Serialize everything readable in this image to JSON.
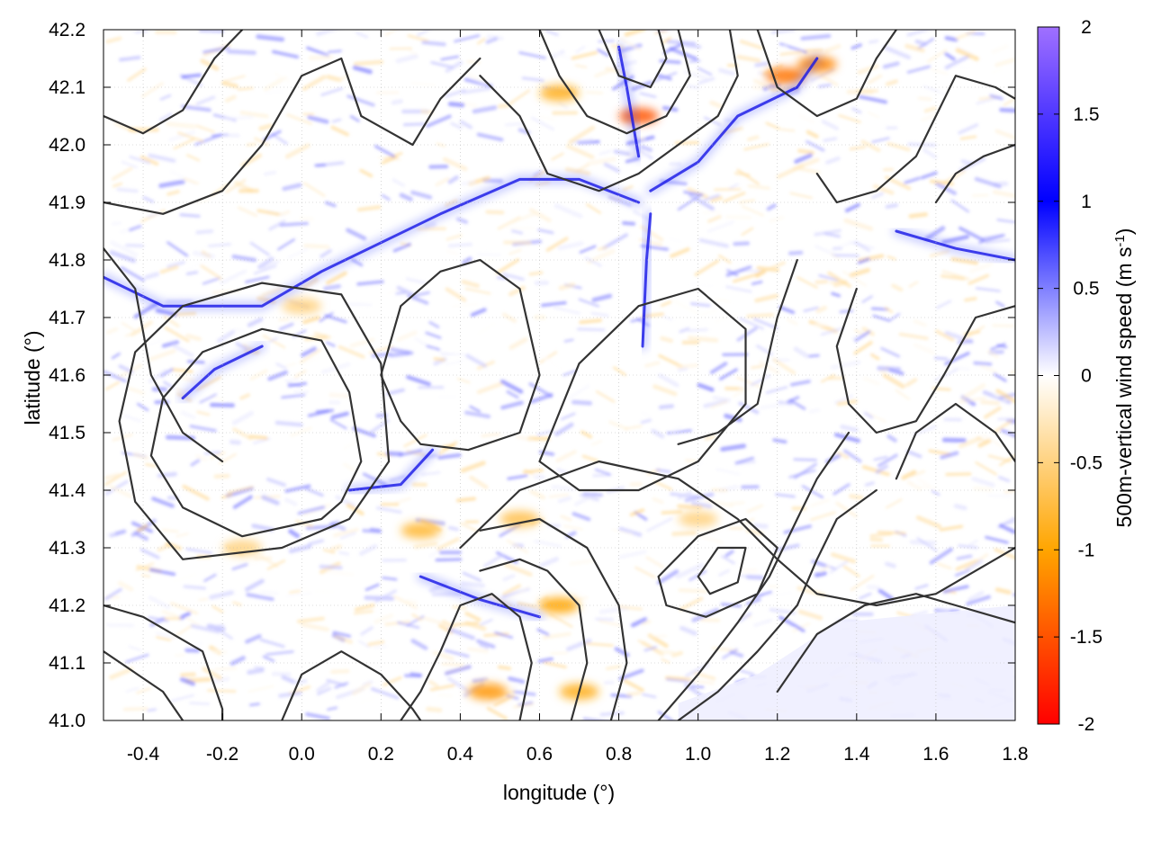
{
  "chart_data": {
    "type": "heatmap",
    "title": "",
    "xlabel": "longitude (°)",
    "ylabel": "latitude (°)",
    "colorbar_label_main": "500m-vertical wind speed (m s",
    "colorbar_label_sup": "-1",
    "colorbar_label_end": ")",
    "xlim": [
      -0.5,
      1.8
    ],
    "ylim": [
      41.0,
      42.2
    ],
    "xticks": [
      "-0.4",
      "-0.2",
      "0.0",
      "0.2",
      "0.4",
      "0.6",
      "0.8",
      "1.0",
      "1.2",
      "1.4",
      "1.6",
      "1.8"
    ],
    "yticks": [
      "41.0",
      "41.1",
      "41.2",
      "41.3",
      "41.4",
      "41.5",
      "41.6",
      "41.7",
      "41.8",
      "41.9",
      "42.0",
      "42.1",
      "42.2"
    ],
    "clim": [
      -2,
      2
    ],
    "cticks": [
      "-2",
      "-1.5",
      "-1",
      "-0.5",
      "0",
      "0.5",
      "1",
      "1.5",
      "2"
    ],
    "grid": true,
    "colormap": [
      "#ff0000",
      "#ffa500",
      "#ffffff",
      "#0000ff",
      "#a070ff"
    ],
    "contour_color": "#333333",
    "features": {
      "updraft_ridges": [
        [
          [
            -0.5,
            41.77
          ],
          [
            -0.35,
            41.72
          ],
          [
            -0.1,
            41.72
          ],
          [
            0.05,
            41.78
          ],
          [
            0.2,
            41.83
          ],
          [
            0.35,
            41.88
          ],
          [
            0.55,
            41.94
          ],
          [
            0.7,
            41.94
          ],
          [
            0.85,
            41.9
          ]
        ],
        [
          [
            0.88,
            41.88
          ],
          [
            0.87,
            41.8
          ],
          [
            0.86,
            41.65
          ]
        ],
        [
          [
            0.88,
            41.92
          ],
          [
            1.0,
            41.97
          ],
          [
            1.1,
            42.05
          ],
          [
            1.25,
            42.1
          ],
          [
            1.3,
            42.15
          ]
        ],
        [
          [
            -0.3,
            41.56
          ],
          [
            -0.22,
            41.61
          ],
          [
            -0.1,
            41.65
          ]
        ],
        [
          [
            0.12,
            41.4
          ],
          [
            0.25,
            41.41
          ],
          [
            0.33,
            41.47
          ]
        ],
        [
          [
            0.3,
            41.25
          ],
          [
            0.45,
            41.21
          ],
          [
            0.6,
            41.18
          ]
        ],
        [
          [
            0.8,
            42.17
          ],
          [
            0.82,
            42.1
          ],
          [
            0.85,
            41.98
          ]
        ],
        [
          [
            1.5,
            41.85
          ],
          [
            1.65,
            41.82
          ],
          [
            1.8,
            41.8
          ]
        ]
      ],
      "downdraft_spots": [
        [
          0.85,
          42.05,
          -1.5
        ],
        [
          1.22,
          42.12,
          -1.3
        ],
        [
          1.3,
          42.14,
          -1.2
        ],
        [
          0.65,
          41.2,
          -1.0
        ],
        [
          0.47,
          41.05,
          -1.1
        ],
        [
          0.3,
          41.33,
          -0.8
        ],
        [
          0.65,
          42.09,
          -0.9
        ],
        [
          0.55,
          41.35,
          -0.7
        ],
        [
          0.0,
          41.72,
          -0.5
        ],
        [
          -0.15,
          41.3,
          -0.5
        ],
        [
          0.7,
          41.05,
          -0.9
        ],
        [
          1.0,
          41.35,
          -0.5
        ]
      ],
      "calm_area": [
        [
          0.95,
          41.0
        ],
        [
          1.8,
          41.0
        ],
        [
          1.8,
          41.2
        ],
        [
          1.35,
          41.17
        ],
        [
          1.15,
          41.08
        ],
        [
          0.95,
          41.03
        ]
      ]
    },
    "contours": [
      [
        [
          0.1,
          41.38
        ],
        [
          0.05,
          41.35
        ],
        [
          -0.15,
          41.32
        ],
        [
          -0.3,
          41.37
        ],
        [
          -0.38,
          41.46
        ],
        [
          -0.35,
          41.56
        ],
        [
          -0.25,
          41.64
        ],
        [
          -0.1,
          41.68
        ],
        [
          0.05,
          41.66
        ],
        [
          0.12,
          41.57
        ],
        [
          0.15,
          41.45
        ],
        [
          0.1,
          41.38
        ]
      ],
      [
        [
          0.12,
          41.35
        ],
        [
          -0.05,
          41.3
        ],
        [
          -0.3,
          41.28
        ],
        [
          -0.42,
          41.38
        ],
        [
          -0.46,
          41.52
        ],
        [
          -0.42,
          41.64
        ],
        [
          -0.3,
          41.72
        ],
        [
          -0.1,
          41.76
        ],
        [
          0.1,
          41.74
        ],
        [
          0.2,
          41.62
        ],
        [
          0.22,
          41.45
        ],
        [
          0.12,
          41.35
        ]
      ],
      [
        [
          -0.5,
          41.9
        ],
        [
          -0.35,
          41.88
        ],
        [
          -0.2,
          41.92
        ],
        [
          -0.1,
          42.0
        ],
        [
          0.0,
          42.12
        ],
        [
          0.1,
          42.15
        ],
        [
          0.15,
          42.05
        ],
        [
          0.28,
          42.0
        ],
        [
          0.35,
          42.08
        ],
        [
          0.45,
          42.15
        ]
      ],
      [
        [
          -0.5,
          42.05
        ],
        [
          -0.4,
          42.02
        ],
        [
          -0.3,
          42.06
        ],
        [
          -0.22,
          42.15
        ],
        [
          -0.15,
          42.2
        ]
      ],
      [
        [
          0.25,
          41.52
        ],
        [
          0.2,
          41.6
        ],
        [
          0.25,
          41.72
        ],
        [
          0.35,
          41.78
        ],
        [
          0.45,
          41.8
        ],
        [
          0.55,
          41.75
        ],
        [
          0.6,
          41.6
        ],
        [
          0.55,
          41.5
        ],
        [
          0.42,
          41.47
        ],
        [
          0.3,
          41.48
        ],
        [
          0.25,
          41.52
        ]
      ],
      [
        [
          0.6,
          41.45
        ],
        [
          0.7,
          41.62
        ],
        [
          0.85,
          41.72
        ],
        [
          1.0,
          41.75
        ],
        [
          1.12,
          41.68
        ],
        [
          1.12,
          41.55
        ],
        [
          1.0,
          41.45
        ],
        [
          0.85,
          41.4
        ],
        [
          0.7,
          41.4
        ],
        [
          0.6,
          41.45
        ]
      ],
      [
        [
          0.4,
          41.3
        ],
        [
          0.55,
          41.4
        ],
        [
          0.75,
          41.45
        ],
        [
          0.95,
          41.42
        ],
        [
          1.1,
          41.35
        ],
        [
          1.2,
          41.28
        ],
        [
          1.3,
          41.22
        ],
        [
          1.45,
          41.2
        ],
        [
          1.6,
          41.22
        ],
        [
          1.75,
          41.28
        ],
        [
          1.8,
          41.3
        ]
      ],
      [
        [
          0.9,
          41.25
        ],
        [
          1.0,
          41.32
        ],
        [
          1.12,
          41.35
        ],
        [
          1.2,
          41.3
        ],
        [
          1.15,
          41.22
        ],
        [
          1.02,
          41.18
        ],
        [
          0.92,
          41.2
        ],
        [
          0.9,
          41.25
        ]
      ],
      [
        [
          1.0,
          41.25
        ],
        [
          1.05,
          41.3
        ],
        [
          1.12,
          41.3
        ],
        [
          1.1,
          41.24
        ],
        [
          1.03,
          41.22
        ],
        [
          1.0,
          41.25
        ]
      ],
      [
        [
          1.2,
          41.05
        ],
        [
          1.3,
          41.15
        ],
        [
          1.42,
          41.2
        ],
        [
          1.55,
          41.22
        ],
        [
          1.65,
          41.2
        ],
        [
          1.75,
          41.18
        ],
        [
          1.8,
          41.17
        ]
      ],
      [
        [
          0.95,
          41.0
        ],
        [
          1.05,
          41.05
        ],
        [
          1.15,
          41.12
        ],
        [
          1.25,
          41.2
        ],
        [
          1.3,
          41.28
        ],
        [
          1.35,
          41.35
        ],
        [
          1.45,
          41.4
        ]
      ],
      [
        [
          0.9,
          41.0
        ],
        [
          1.0,
          41.08
        ],
        [
          1.1,
          41.17
        ],
        [
          1.18,
          41.25
        ],
        [
          1.25,
          41.35
        ],
        [
          1.3,
          41.42
        ],
        [
          1.38,
          41.5
        ]
      ],
      [
        [
          0.55,
          41.0
        ],
        [
          0.58,
          41.1
        ],
        [
          0.55,
          41.18
        ],
        [
          0.48,
          41.22
        ],
        [
          0.4,
          41.2
        ],
        [
          0.35,
          41.12
        ],
        [
          0.3,
          41.05
        ],
        [
          0.25,
          41.0
        ]
      ],
      [
        [
          0.68,
          41.0
        ],
        [
          0.72,
          41.1
        ],
        [
          0.7,
          41.2
        ],
        [
          0.62,
          41.26
        ],
        [
          0.55,
          41.28
        ],
        [
          0.45,
          41.26
        ]
      ],
      [
        [
          0.78,
          41.0
        ],
        [
          0.82,
          41.1
        ],
        [
          0.8,
          41.2
        ],
        [
          0.72,
          41.3
        ],
        [
          0.6,
          41.35
        ],
        [
          0.45,
          41.33
        ]
      ],
      [
        [
          -0.5,
          41.2
        ],
        [
          -0.4,
          41.18
        ],
        [
          -0.25,
          41.12
        ],
        [
          -0.2,
          41.02
        ],
        [
          -0.2,
          41.0
        ]
      ],
      [
        [
          -0.05,
          41.0
        ],
        [
          0.0,
          41.08
        ],
        [
          0.1,
          41.12
        ],
        [
          0.2,
          41.08
        ],
        [
          0.28,
          41.02
        ],
        [
          0.3,
          41.0
        ]
      ],
      [
        [
          -0.5,
          41.12
        ],
        [
          -0.35,
          41.05
        ],
        [
          -0.3,
          41.0
        ]
      ],
      [
        [
          0.45,
          42.12
        ],
        [
          0.55,
          42.05
        ],
        [
          0.62,
          41.95
        ],
        [
          0.75,
          41.92
        ],
        [
          0.85,
          41.95
        ],
        [
          0.95,
          42.0
        ],
        [
          1.05,
          42.05
        ],
        [
          1.1,
          42.12
        ],
        [
          1.08,
          42.2
        ]
      ],
      [
        [
          0.6,
          42.2
        ],
        [
          0.65,
          42.12
        ],
        [
          0.72,
          42.05
        ],
        [
          0.82,
          42.02
        ],
        [
          0.92,
          42.05
        ],
        [
          0.98,
          42.12
        ],
        [
          0.95,
          42.2
        ]
      ],
      [
        [
          0.75,
          42.2
        ],
        [
          0.8,
          42.12
        ],
        [
          0.88,
          42.1
        ],
        [
          0.92,
          42.15
        ],
        [
          0.9,
          42.2
        ]
      ],
      [
        [
          1.15,
          42.2
        ],
        [
          1.2,
          42.1
        ],
        [
          1.3,
          42.05
        ],
        [
          1.4,
          42.08
        ],
        [
          1.45,
          42.15
        ],
        [
          1.5,
          42.2
        ]
      ],
      [
        [
          1.3,
          41.95
        ],
        [
          1.35,
          41.9
        ],
        [
          1.45,
          41.92
        ],
        [
          1.55,
          41.98
        ],
        [
          1.6,
          42.05
        ],
        [
          1.65,
          42.12
        ],
        [
          1.75,
          42.1
        ],
        [
          1.8,
          42.08
        ]
      ],
      [
        [
          1.4,
          41.75
        ],
        [
          1.35,
          41.65
        ],
        [
          1.38,
          41.55
        ],
        [
          1.45,
          41.5
        ],
        [
          1.55,
          41.52
        ],
        [
          1.62,
          41.6
        ],
        [
          1.7,
          41.7
        ],
        [
          1.8,
          41.72
        ]
      ],
      [
        [
          1.5,
          41.42
        ],
        [
          1.55,
          41.5
        ],
        [
          1.65,
          41.55
        ],
        [
          1.75,
          41.5
        ],
        [
          1.8,
          41.45
        ]
      ],
      [
        [
          1.25,
          41.8
        ],
        [
          1.2,
          41.7
        ],
        [
          1.15,
          41.55
        ],
        [
          1.05,
          41.5
        ],
        [
          0.95,
          41.48
        ]
      ],
      [
        [
          -0.2,
          41.45
        ],
        [
          -0.3,
          41.5
        ],
        [
          -0.38,
          41.6
        ],
        [
          -0.42,
          41.75
        ],
        [
          -0.5,
          41.82
        ]
      ],
      [
        [
          1.6,
          41.9
        ],
        [
          1.65,
          41.95
        ],
        [
          1.72,
          41.98
        ],
        [
          1.8,
          42.0
        ]
      ]
    ]
  }
}
